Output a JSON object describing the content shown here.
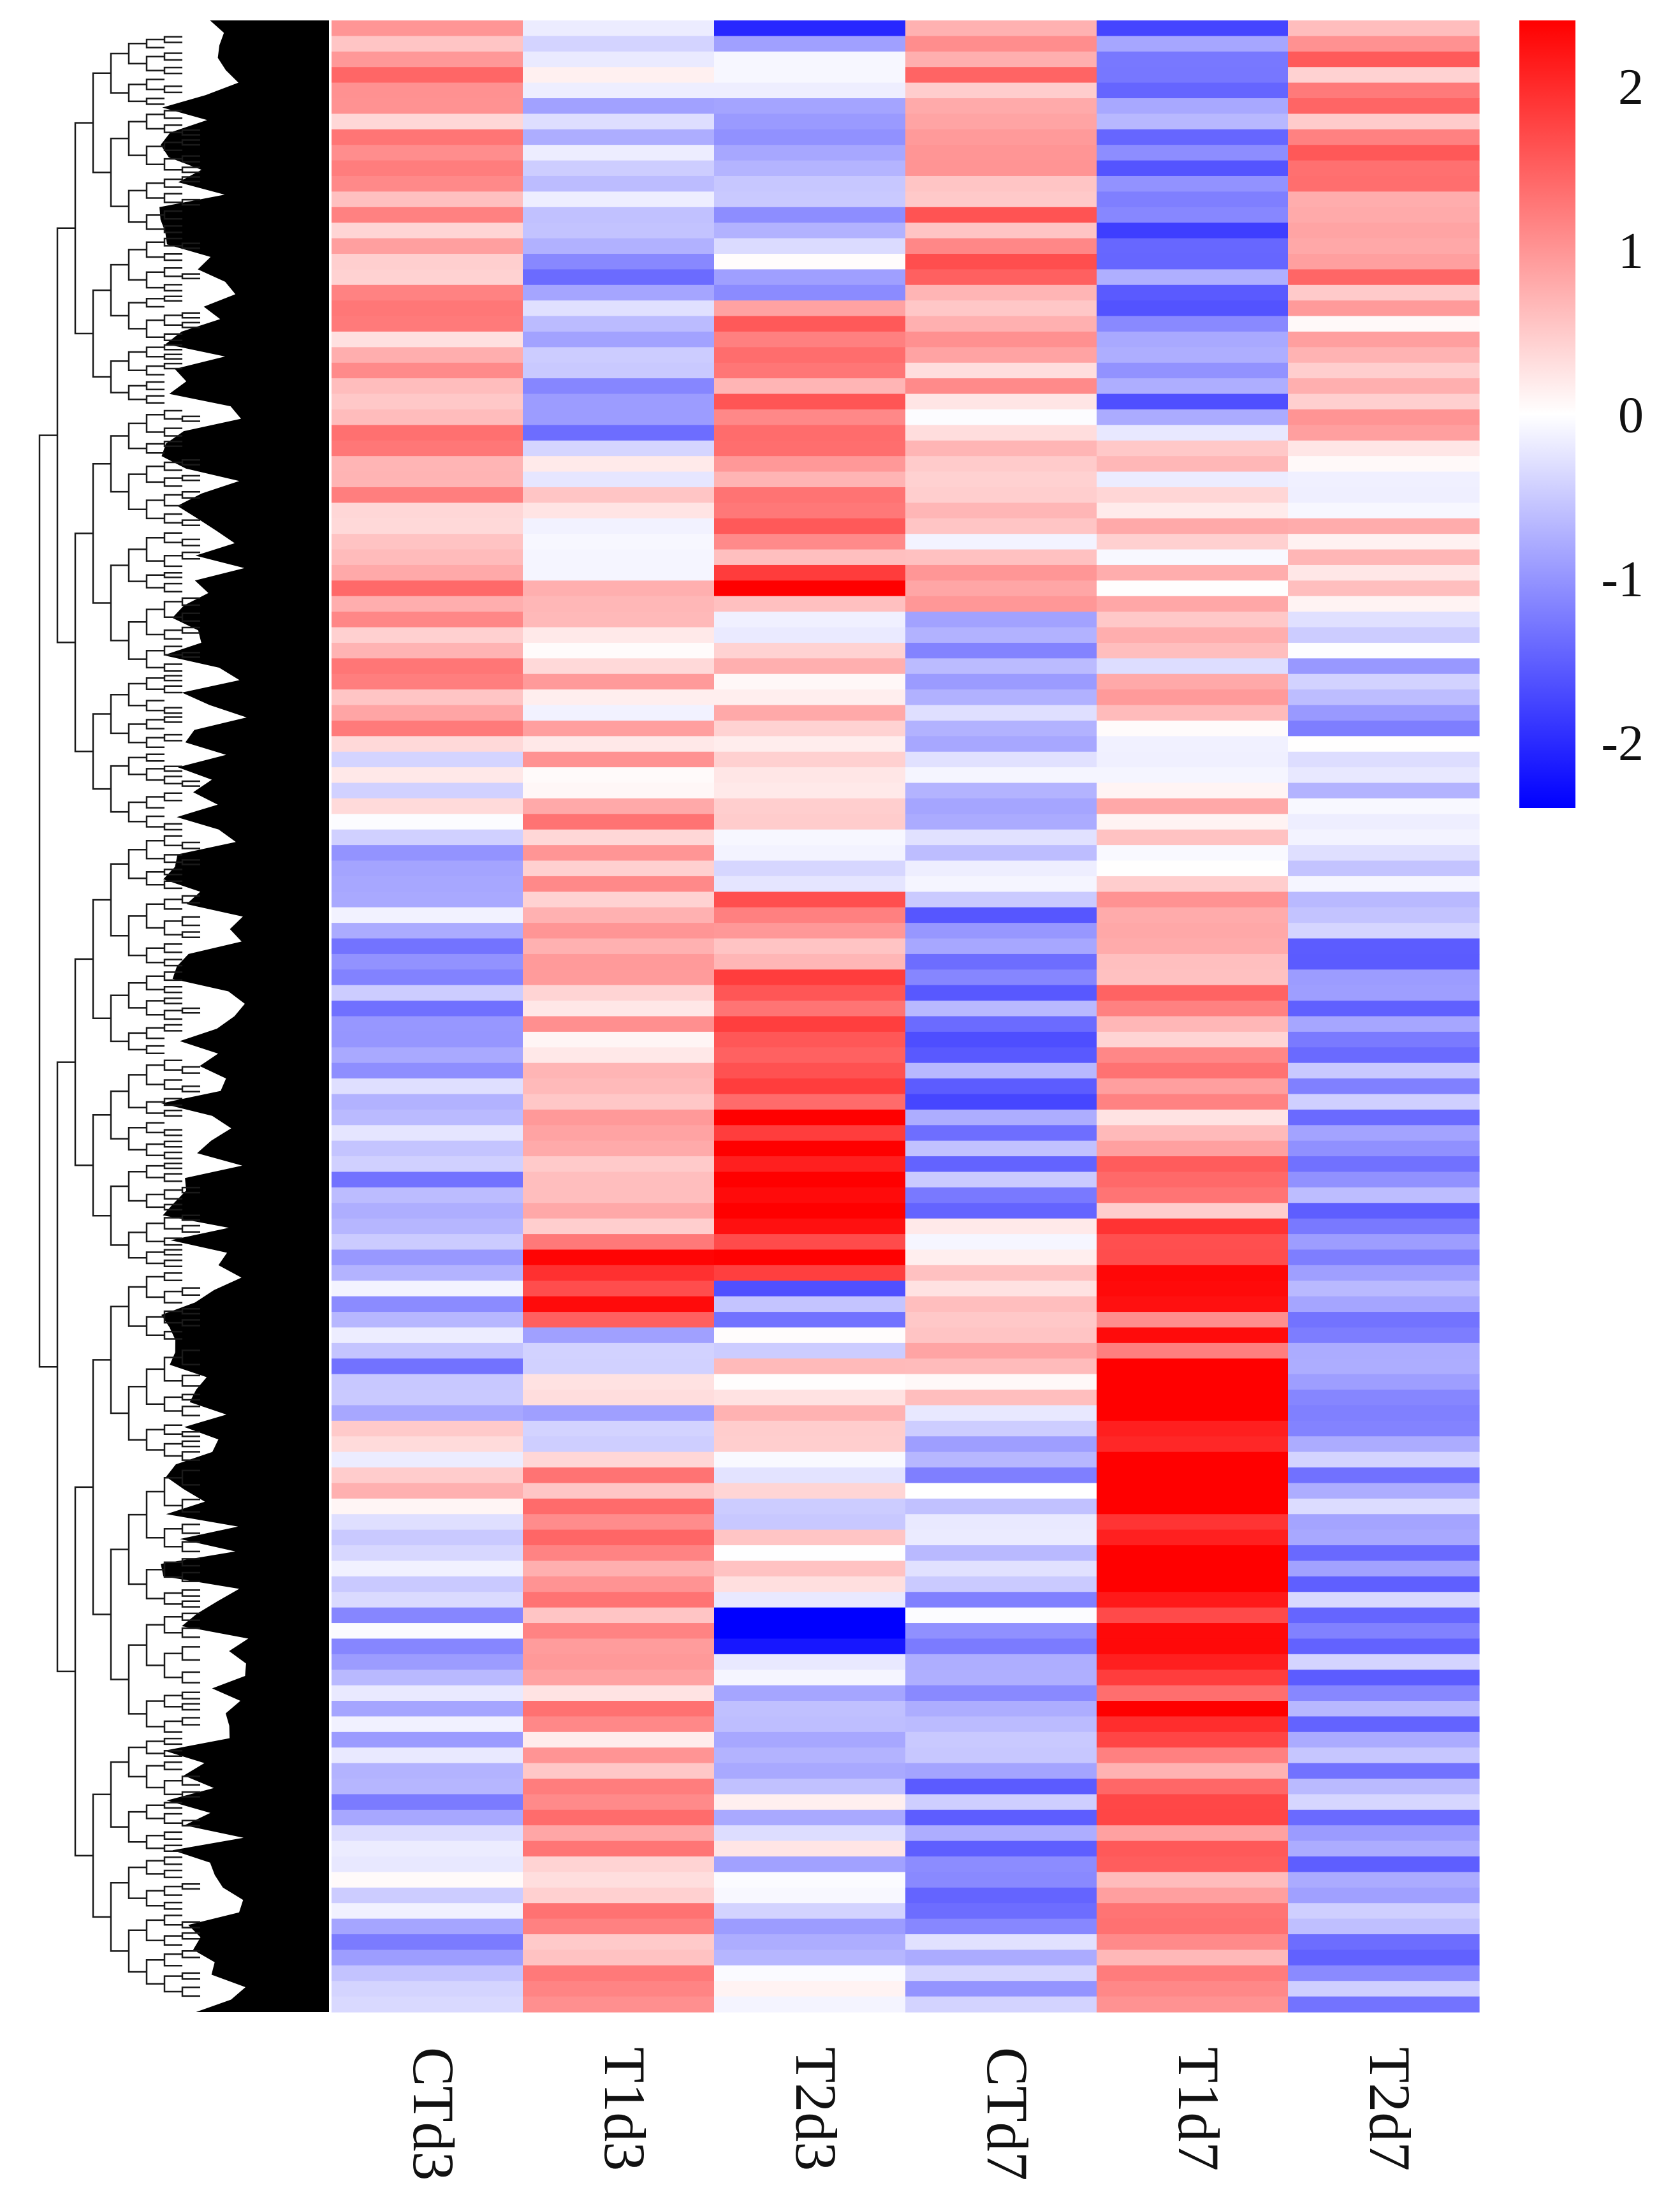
{
  "chart_data": {
    "type": "heatmap",
    "title": "",
    "columns": [
      "CTd3",
      "T1d3",
      "T2d3",
      "CTd7",
      "T1d7",
      "T2d7"
    ],
    "row_clustering": "hierarchical dendrogram (left)",
    "n_rows_rendered": 128,
    "value_range": [
      -2.4,
      2.4
    ],
    "colorbar": {
      "ticks": [
        2,
        1,
        0,
        -1,
        -2
      ],
      "tick_labels": [
        "2",
        "1",
        "0",
        "-1",
        "-2"
      ],
      "low_color": "#0000ff",
      "mid_color": "#ffffff",
      "high_color": "#ff0000"
    },
    "column_profiles": {
      "CTd3": [
        [
          0.0,
          0.36,
          0.8
        ],
        [
          0.36,
          0.41,
          0.1
        ],
        [
          0.41,
          0.7,
          -0.7
        ],
        [
          0.7,
          0.76,
          0.1
        ],
        [
          0.76,
          1.0,
          -0.6
        ]
      ],
      "T1d3": [
        [
          0.0,
          0.12,
          -0.4
        ],
        [
          0.12,
          0.22,
          -0.9
        ],
        [
          0.22,
          0.39,
          0.4
        ],
        [
          0.39,
          0.62,
          0.7
        ],
        [
          0.62,
          0.66,
          1.8
        ],
        [
          0.66,
          0.72,
          -0.3
        ],
        [
          0.72,
          1.0,
          0.8
        ]
      ],
      "T2d3": [
        [
          0.0,
          0.01,
          -2.3
        ],
        [
          0.01,
          0.14,
          -0.5
        ],
        [
          0.14,
          0.28,
          1.2
        ],
        [
          0.28,
          0.29,
          2.2
        ],
        [
          0.29,
          0.44,
          0.2
        ],
        [
          0.44,
          0.55,
          1.2
        ],
        [
          0.55,
          0.63,
          2.3
        ],
        [
          0.63,
          0.66,
          -1.2
        ],
        [
          0.66,
          0.8,
          0.1
        ],
        [
          0.8,
          0.82,
          -2.3
        ],
        [
          0.82,
          1.0,
          -0.3
        ]
      ],
      "CTd7": [
        [
          0.0,
          0.16,
          1.1
        ],
        [
          0.16,
          0.3,
          0.5
        ],
        [
          0.3,
          0.44,
          -0.7
        ],
        [
          0.44,
          0.6,
          -1.1
        ],
        [
          0.6,
          0.7,
          0.3
        ],
        [
          0.7,
          0.87,
          -0.6
        ],
        [
          0.87,
          1.0,
          -0.9
        ]
      ],
      "T1d7": [
        [
          0.0,
          0.2,
          -1.2
        ],
        [
          0.2,
          0.44,
          0.3
        ],
        [
          0.44,
          0.6,
          0.9
        ],
        [
          0.6,
          0.67,
          1.7
        ],
        [
          0.67,
          0.8,
          2.3
        ],
        [
          0.8,
          0.87,
          1.8
        ],
        [
          0.87,
          1.0,
          1.2
        ]
      ],
      "T2d7": [
        [
          0.0,
          0.14,
          1.0
        ],
        [
          0.14,
          0.3,
          0.4
        ],
        [
          0.3,
          0.44,
          -0.6
        ],
        [
          0.44,
          1.0,
          -0.9
        ]
      ]
    }
  }
}
